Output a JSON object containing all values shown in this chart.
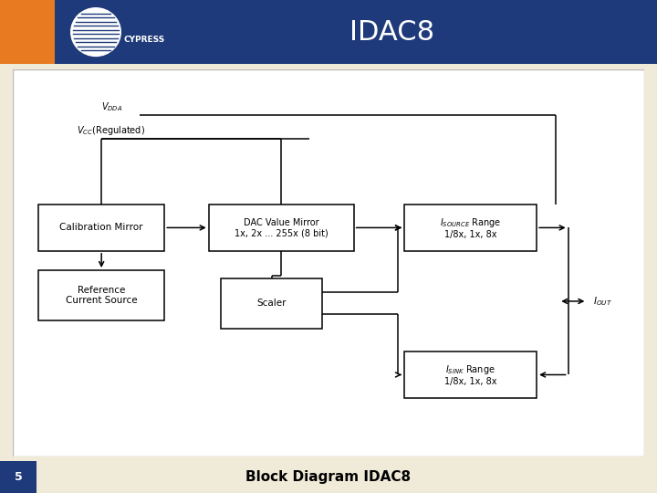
{
  "title": "IDAC8",
  "title_color": "#FFFFFF",
  "header_bg": "#1e3a7a",
  "header_stripe_orange": "#E87B22",
  "body_bg": "#F0EBD8",
  "diagram_bg": "#FFFFFF",
  "box_edge_color": "#000000",
  "line_color": "#000000",
  "footer_text": "Block Diagram IDAC8",
  "footer_bg": "#F0EBD8",
  "slide_num": "5",
  "slide_num_bg": "#1e3a7a"
}
